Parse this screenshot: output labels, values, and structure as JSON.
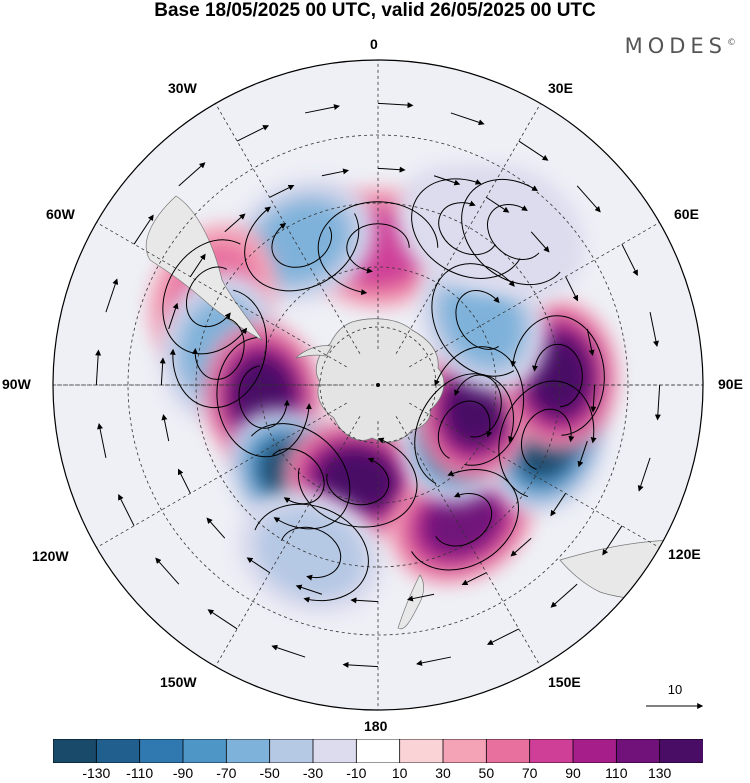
{
  "title": "Base 18/05/2025 00 UTC, valid 26/05/2025 00 UTC",
  "logo": "MODES",
  "logo_mark": "©",
  "map": {
    "projection": "south polar stereographic",
    "longitude_labels": [
      {
        "id": "lon-0",
        "text": "0"
      },
      {
        "id": "lon-30e",
        "text": "30E"
      },
      {
        "id": "lon-60e",
        "text": "60E"
      },
      {
        "id": "lon-90e",
        "text": "90E"
      },
      {
        "id": "lon-120e",
        "text": "120E"
      },
      {
        "id": "lon-150e",
        "text": "150E"
      },
      {
        "id": "lon-180",
        "text": "180"
      },
      {
        "id": "lon-150w",
        "text": "150W"
      },
      {
        "id": "lon-120w",
        "text": "120W"
      },
      {
        "id": "lon-90w",
        "text": "90W"
      },
      {
        "id": "lon-60w",
        "text": "60W"
      },
      {
        "id": "lon-30w",
        "text": "30W"
      }
    ],
    "anomaly_centers": [
      {
        "id": "pos-0e",
        "lon": 0,
        "lat": -52,
        "level": 70
      },
      {
        "id": "neg-30w",
        "lon": -28,
        "lat": -45,
        "level": -70
      },
      {
        "id": "pos-60w",
        "lon": -62,
        "lat": -38,
        "level": 50
      },
      {
        "id": "neg-75w",
        "lon": -77,
        "lat": -45,
        "level": -60
      },
      {
        "id": "pos-95w",
        "lon": -96,
        "lat": -58,
        "level": 130
      },
      {
        "id": "neg-135w",
        "lon": -138,
        "lat": -56,
        "level": -130
      },
      {
        "id": "pos-170w",
        "lon": -168,
        "lat": -63,
        "level": 130
      },
      {
        "id": "neg-160w",
        "lon": -158,
        "lat": -40,
        "level": -40
      },
      {
        "id": "pos-145e",
        "lon": 148,
        "lat": -46,
        "level": 100
      },
      {
        "id": "neg-118e",
        "lon": 118,
        "lat": -63,
        "level": -130
      },
      {
        "id": "neg-110e",
        "lon": 108,
        "lat": -41,
        "level": -130
      },
      {
        "id": "pos-100e",
        "lon": 102,
        "lat": -62,
        "level": 130
      },
      {
        "id": "pos-90e",
        "lon": 87,
        "lat": -40,
        "level": 130
      },
      {
        "id": "neg-55e",
        "lon": 58,
        "lat": -56,
        "level": -60
      },
      {
        "id": "neg-30e",
        "lon": 30,
        "lat": -40,
        "level": -30
      },
      {
        "id": "neg-40e-north",
        "lon": 42,
        "lat": -33,
        "level": -30
      }
    ],
    "vector_unit": {
      "label": "10",
      "value": 10
    }
  },
  "colorbar": {
    "labels": [
      "-130",
      "-110",
      "-90",
      "-70",
      "-50",
      "-30",
      "-10",
      "10",
      "30",
      "50",
      "70",
      "90",
      "110",
      "130"
    ],
    "colors": [
      "#1a4a6a",
      "#205f8e",
      "#2f78b0",
      "#4e96c6",
      "#7fb2da",
      "#b5c8e4",
      "#dcdcee",
      "#ffffff",
      "#fad3d6",
      "#f4a3b7",
      "#e8709f",
      "#cf3f98",
      "#a51e8a",
      "#70127a",
      "#4a0d66"
    ]
  }
}
